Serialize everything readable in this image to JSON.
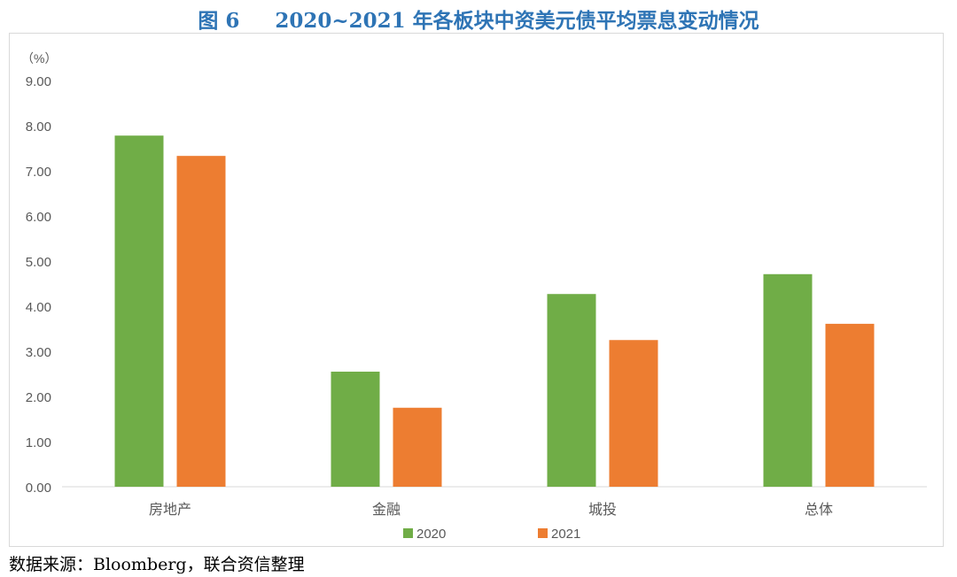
{
  "title": "图 6     2020~2021 年各板块中资美元债平均票息变动情况",
  "source": "数据来源：Bloomberg，联合资信整理",
  "chart_data": {
    "type": "bar",
    "title": "",
    "ylabel": "（%）",
    "ylim": [
      0,
      9
    ],
    "yticks": [
      "0.00",
      "1.00",
      "2.00",
      "3.00",
      "4.00",
      "5.00",
      "6.00",
      "7.00",
      "8.00",
      "9.00"
    ],
    "categories": [
      "房地产",
      "金融",
      "城投",
      "总体"
    ],
    "series": [
      {
        "name": "2020",
        "color": "#70ad47",
        "values": [
          7.78,
          2.55,
          4.27,
          4.71
        ]
      },
      {
        "name": "2021",
        "color": "#ed7d31",
        "values": [
          7.33,
          1.75,
          3.25,
          3.61
        ]
      }
    ],
    "grid": false,
    "legend": "bottom"
  }
}
